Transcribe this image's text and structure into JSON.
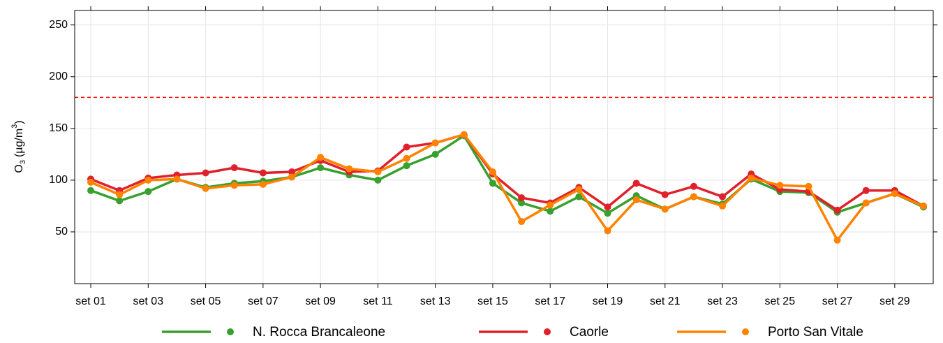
{
  "chart_data": {
    "type": "line",
    "y_label": {
      "main": "O",
      "sub": "3",
      "unit": "(µg/m",
      "sup": "3",
      "close": ")"
    },
    "categories": [
      "set 01",
      null,
      "set 03",
      null,
      "set 05",
      null,
      "set 07",
      null,
      "set 09",
      null,
      "set 11",
      null,
      "set 13",
      null,
      "set 15",
      null,
      "set 17",
      null,
      "set 19",
      null,
      "set 21",
      null,
      "set 23",
      null,
      "set 25",
      null,
      "set 27",
      null,
      "set 29",
      null
    ],
    "series": [
      {
        "name": "N. Rocca Brancaleone",
        "color": "#38a02e",
        "values": [
          90,
          80,
          89,
          101,
          93,
          97,
          99,
          103,
          112,
          105,
          100,
          114,
          125,
          143,
          97,
          78,
          70,
          84,
          68,
          85,
          72,
          84,
          77,
          101,
          89,
          88,
          69,
          78,
          87,
          74
        ]
      },
      {
        "name": "Caorle",
        "color": "#e0202a",
        "values": [
          101,
          90,
          102,
          105,
          107,
          112,
          107,
          108,
          119,
          108,
          109,
          132,
          136,
          144,
          106,
          83,
          78,
          93,
          74,
          97,
          86,
          94,
          84,
          106,
          91,
          89,
          71,
          90,
          90,
          75
        ]
      },
      {
        "name": "Porto San Vitale",
        "color": "#ff8200",
        "values": [
          98,
          86,
          100,
          101,
          92,
          95,
          96,
          103,
          122,
          111,
          108,
          121,
          136,
          144,
          108,
          60,
          76,
          91,
          51,
          81,
          72,
          84,
          75,
          102,
          95,
          94,
          42,
          78,
          87,
          75
        ]
      }
    ],
    "threshold": 180,
    "threshold_color": "#ff0000",
    "ylim": [
      0,
      264
    ],
    "yticks": [
      50,
      100,
      150,
      200,
      250
    ],
    "grid": true,
    "legend": "bottom"
  }
}
